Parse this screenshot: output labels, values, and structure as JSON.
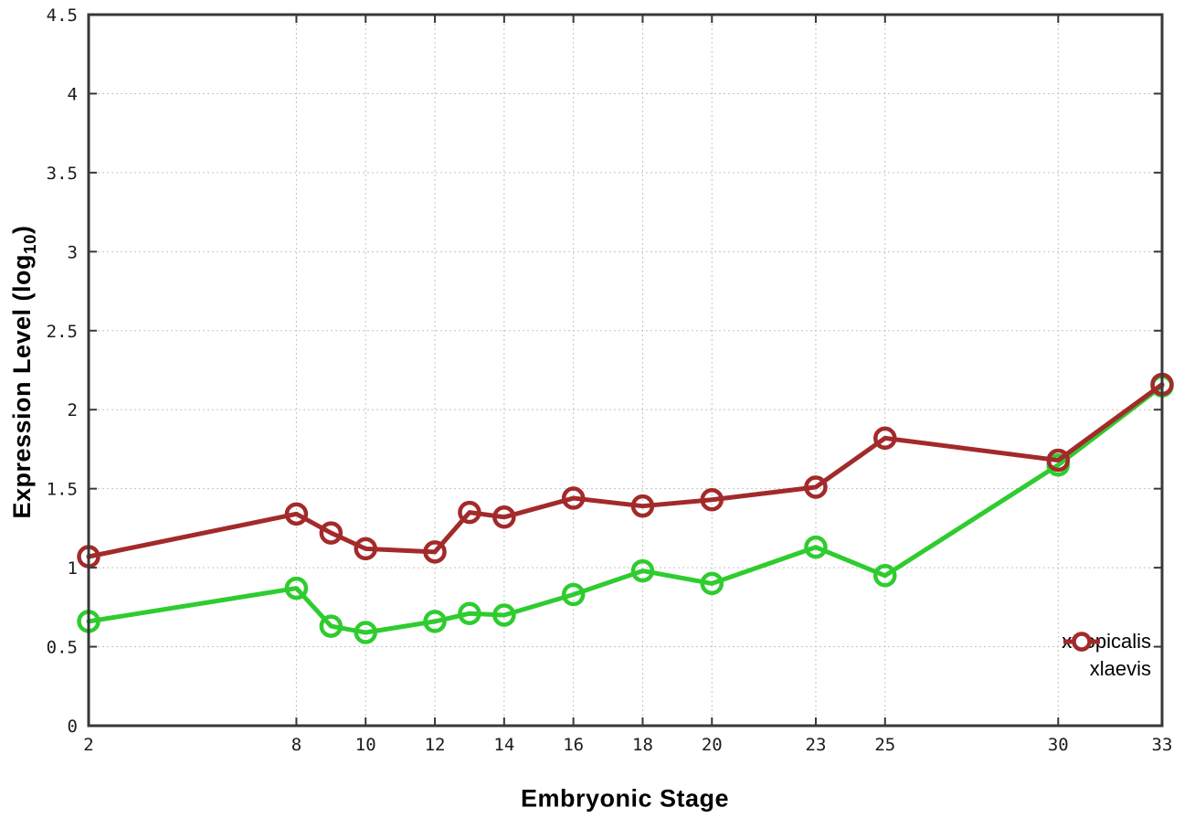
{
  "chart_data": {
    "type": "line",
    "title": "",
    "xlabel": "Embryonic Stage",
    "ylabel": {
      "pre": "Expression Level (log",
      "sub": "10",
      "post": ")"
    },
    "ylabel_plain": "Expression Level (log10)",
    "x": [
      2,
      8,
      9,
      10,
      12,
      13,
      14,
      16,
      18,
      20,
      23,
      25,
      30,
      33
    ],
    "xticks": [
      2,
      8,
      10,
      12,
      14,
      16,
      18,
      20,
      23,
      25,
      30,
      33
    ],
    "xtick_labels": [
      "2",
      "8",
      "10",
      "12",
      "14",
      "16",
      "18",
      "20",
      "23",
      "25",
      "30",
      "33"
    ],
    "yticks": [
      0,
      0.5,
      1,
      1.5,
      2,
      2.5,
      3,
      3.5,
      4,
      4.5
    ],
    "ytick_labels": [
      "0",
      "0.5",
      "1",
      "1.5",
      "2",
      "2.5",
      "3",
      "3.5",
      "4",
      "4.5"
    ],
    "xlim": [
      2,
      33
    ],
    "ylim": [
      0,
      4.5
    ],
    "grid": true,
    "legend_position": "bottom-right",
    "series": [
      {
        "name": "xtropicalis",
        "color": "#2ecc2e",
        "values": [
          0.66,
          0.87,
          0.63,
          0.59,
          0.66,
          0.71,
          0.7,
          0.83,
          0.98,
          0.9,
          1.13,
          0.95,
          1.65,
          2.15
        ]
      },
      {
        "name": "xlaevis",
        "color": "#a32a2a",
        "values": [
          1.07,
          1.34,
          1.22,
          1.12,
          1.1,
          1.35,
          1.32,
          1.44,
          1.39,
          1.43,
          1.51,
          1.82,
          1.68,
          2.16
        ]
      }
    ],
    "style": {
      "grid_color": "#c3c3c3",
      "border_color": "#383838",
      "line_width": 5,
      "marker": "open-circle",
      "marker_radius": 10.5
    }
  }
}
